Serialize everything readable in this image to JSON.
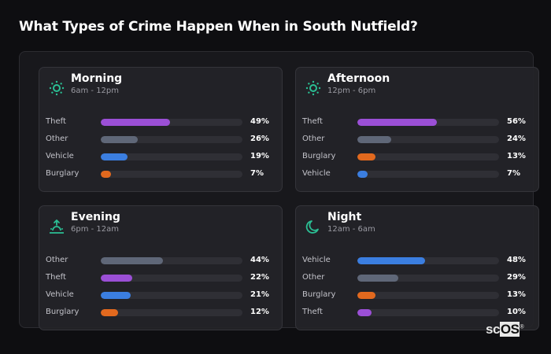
{
  "title": "What Types of Crime Happen When in South Nutfield?",
  "colors": {
    "accent_icon": "#2bbf94",
    "Theft": "#9b4fd6",
    "Other": "#5f6778",
    "Vehicle": "#3b7ee0",
    "Burglary": "#e2691e",
    "track": "#2f2f35"
  },
  "cards": [
    {
      "name": "Morning",
      "range": "6am - 12pm",
      "icon": "sun-icon",
      "rows": [
        {
          "label": "Theft",
          "value": 49,
          "pct": "49%"
        },
        {
          "label": "Other",
          "value": 26,
          "pct": "26%"
        },
        {
          "label": "Vehicle",
          "value": 19,
          "pct": "19%"
        },
        {
          "label": "Burglary",
          "value": 7,
          "pct": "7%"
        }
      ]
    },
    {
      "name": "Afternoon",
      "range": "12pm - 6pm",
      "icon": "sun-icon",
      "rows": [
        {
          "label": "Theft",
          "value": 56,
          "pct": "56%"
        },
        {
          "label": "Other",
          "value": 24,
          "pct": "24%"
        },
        {
          "label": "Burglary",
          "value": 13,
          "pct": "13%"
        },
        {
          "label": "Vehicle",
          "value": 7,
          "pct": "7%"
        }
      ]
    },
    {
      "name": "Evening",
      "range": "6pm - 12am",
      "icon": "sunset-icon",
      "rows": [
        {
          "label": "Other",
          "value": 44,
          "pct": "44%"
        },
        {
          "label": "Theft",
          "value": 22,
          "pct": "22%"
        },
        {
          "label": "Vehicle",
          "value": 21,
          "pct": "21%"
        },
        {
          "label": "Burglary",
          "value": 12,
          "pct": "12%"
        }
      ]
    },
    {
      "name": "Night",
      "range": "12am - 6am",
      "icon": "moon-icon",
      "rows": [
        {
          "label": "Vehicle",
          "value": 48,
          "pct": "48%"
        },
        {
          "label": "Other",
          "value": 29,
          "pct": "29%"
        },
        {
          "label": "Burglary",
          "value": 13,
          "pct": "13%"
        },
        {
          "label": "Theft",
          "value": 10,
          "pct": "10%"
        }
      ]
    }
  ],
  "logo": {
    "sc": "sc",
    "os": "OS",
    "reg": "®"
  },
  "chart_data": [
    {
      "type": "bar",
      "title": "Morning",
      "subtitle": "6am - 12pm",
      "categories": [
        "Theft",
        "Other",
        "Vehicle",
        "Burglary"
      ],
      "values": [
        49,
        26,
        19,
        7
      ],
      "unit": "%",
      "xlim": [
        0,
        100
      ],
      "orientation": "horizontal"
    },
    {
      "type": "bar",
      "title": "Afternoon",
      "subtitle": "12pm - 6pm",
      "categories": [
        "Theft",
        "Other",
        "Burglary",
        "Vehicle"
      ],
      "values": [
        56,
        24,
        13,
        7
      ],
      "unit": "%",
      "xlim": [
        0,
        100
      ],
      "orientation": "horizontal"
    },
    {
      "type": "bar",
      "title": "Evening",
      "subtitle": "6pm - 12am",
      "categories": [
        "Other",
        "Theft",
        "Vehicle",
        "Burglary"
      ],
      "values": [
        44,
        22,
        21,
        12
      ],
      "unit": "%",
      "xlim": [
        0,
        100
      ],
      "orientation": "horizontal"
    },
    {
      "type": "bar",
      "title": "Night",
      "subtitle": "12am - 6am",
      "categories": [
        "Vehicle",
        "Other",
        "Burglary",
        "Theft"
      ],
      "values": [
        48,
        29,
        13,
        10
      ],
      "unit": "%",
      "xlim": [
        0,
        100
      ],
      "orientation": "horizontal"
    }
  ]
}
